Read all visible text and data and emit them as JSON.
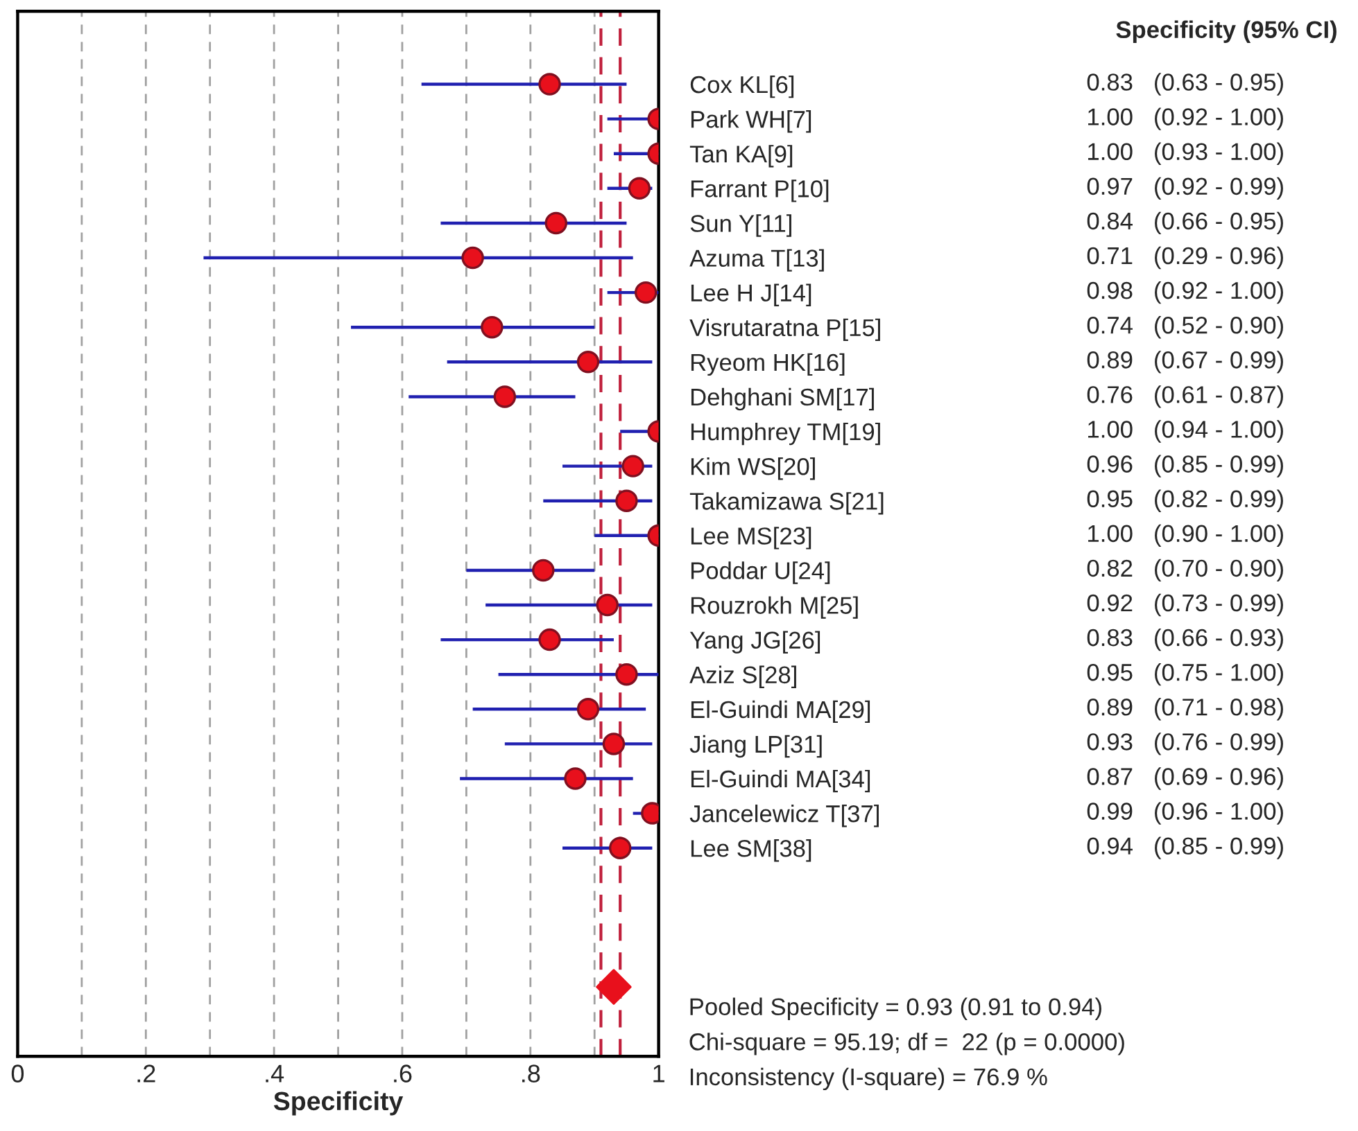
{
  "chart_data": {
    "type": "scatter",
    "orientation": "horizontal",
    "xlabel": "Specificity",
    "categories": [
      "Cox KL[6]",
      "Park WH[7]",
      "Tan KA[9]",
      "Farrant P[10]",
      "Sun Y[11]",
      "Azuma T[13]",
      "Lee H J[14]",
      "Visrutaratna P[15]",
      "Ryeom HK[16]",
      "Dehghani SM[17]",
      "Humphrey TM[19]",
      "Kim WS[20]",
      "Takamizawa S[21]",
      "Lee MS[23]",
      "Poddar U[24]",
      "Rouzrokh M[25]",
      "Yang JG[26]",
      "Aziz S[28]",
      "El-Guindi MA[29]",
      "Jiang LP[31]",
      "El-Guindi MA[34]",
      "Jancelewicz T[37]",
      "Lee SM[38]",
      null,
      null,
      null,
      null
    ],
    "series": [
      {
        "color": "#2020b0",
        "colors": [
          "#e8101c",
          "#e8101c",
          "#e8101c",
          "#e8101c",
          "#e8101c",
          "#e8101c",
          "#e8101c",
          "#e8101c",
          "#e8101c",
          "#e8101c",
          "#e8101c",
          "#e8101c",
          "#e8101c",
          "#e8101c",
          "#e8101c",
          "#e8101c",
          "#e8101c",
          "#e8101c",
          "#e8101c",
          "#e8101c",
          "#e8101c",
          "#e8101c",
          "#e8101c",
          "#e8101c",
          "#e8101c",
          "#e8101c",
          "#e8101c"
        ],
        "marker": "circle",
        "values": [
          0.83,
          1.0,
          1.0,
          0.97,
          0.84,
          0.71,
          0.98,
          0.74,
          0.89,
          0.76,
          1.0,
          0.96,
          0.95,
          1.0,
          0.82,
          0.92,
          0.83,
          0.95,
          0.89,
          0.93,
          0.87,
          0.99,
          0.94,
          null,
          null,
          null,
          null
        ],
        "errors": [
          [
            0.63,
            0.95
          ],
          [
            0.92,
            1.0
          ],
          [
            0.93,
            1.0
          ],
          [
            0.92,
            0.99
          ],
          [
            0.66,
            0.95
          ],
          [
            0.29,
            0.96
          ],
          [
            0.92,
            1.0
          ],
          [
            0.52,
            0.9
          ],
          [
            0.67,
            0.99
          ],
          [
            0.61,
            0.87
          ],
          [
            0.94,
            1.0
          ],
          [
            0.85,
            0.99
          ],
          [
            0.82,
            0.99
          ],
          [
            0.9,
            1.0
          ],
          [
            0.7,
            0.9
          ],
          [
            0.73,
            0.99
          ],
          [
            0.66,
            0.93
          ],
          [
            0.75,
            1.0
          ],
          [
            0.71,
            0.98
          ],
          [
            0.76,
            0.99
          ],
          [
            0.69,
            0.96
          ],
          [
            0.96,
            1.0
          ],
          [
            0.85,
            0.99
          ],
          null,
          null,
          null,
          null
        ],
        "value_labels": [
          "0.83   (0.63 - 0.95)",
          "1.00   (0.92 - 1.00)",
          "1.00   (0.93 - 1.00)",
          "0.97   (0.92 - 0.99)",
          "0.84   (0.66 - 0.95)",
          "0.71   (0.29 - 0.96)",
          "0.98   (0.92 - 1.00)",
          "0.74   (0.52 - 0.90)",
          "0.89   (0.67 - 0.99)",
          "0.76   (0.61 - 0.87)",
          "1.00   (0.94 - 1.00)",
          "0.96   (0.85 - 0.99)",
          "0.95   (0.82 - 0.99)",
          "1.00   (0.90 - 1.00)",
          "0.82   (0.70 - 0.90)",
          "0.92   (0.73 - 0.99)",
          "0.83   (0.66 - 0.93)",
          "0.95   (0.75 - 1.00)",
          "0.89   (0.71 - 0.98)",
          "0.93   (0.76 - 0.99)",
          "0.87   (0.69 - 0.96)",
          "0.99   (0.96 - 1.00)",
          "0.94   (0.85 - 0.99)",
          null,
          null,
          null,
          null
        ]
      },
      {
        "color": "#e8101c",
        "marker": "diamond",
        "values": [
          null,
          null,
          null,
          null,
          null,
          null,
          null,
          null,
          null,
          null,
          null,
          null,
          null,
          null,
          null,
          null,
          null,
          null,
          null,
          null,
          null,
          null,
          null,
          null,
          null,
          null,
          0.93
        ]
      }
    ],
    "ref_lines": [
      {
        "axis": "x",
        "value": 0.91,
        "color": "#c0203c",
        "line_style": "dashed"
      },
      {
        "axis": "x",
        "value": 0.94,
        "color": "#c0203c",
        "line_style": "dashed"
      }
    ],
    "xlim": [
      0,
      1
    ],
    "xticks": [
      0,
      {
        "value": 0.1,
        "label": null
      },
      {
        "value": 0.2,
        "label": ".2"
      },
      {
        "value": 0.3,
        "label": null
      },
      {
        "value": 0.4,
        "label": ".4"
      },
      {
        "value": 0.5,
        "label": null
      },
      {
        "value": 0.6,
        "label": ".6"
      },
      {
        "value": 0.7,
        "label": null
      },
      {
        "value": 0.8,
        "label": ".8"
      },
      {
        "value": 0.9,
        "label": null
      },
      1
    ],
    "grid": "x",
    "annotations": [
      "Specificity (95% CI)",
      "Pooled Specificity = 0.93 (0.91 to 0.94)",
      "Chi-square = 95.19; df =  22 (p = 0.0000)",
      "Inconsistency (I-square) = 76.9 %"
    ]
  }
}
